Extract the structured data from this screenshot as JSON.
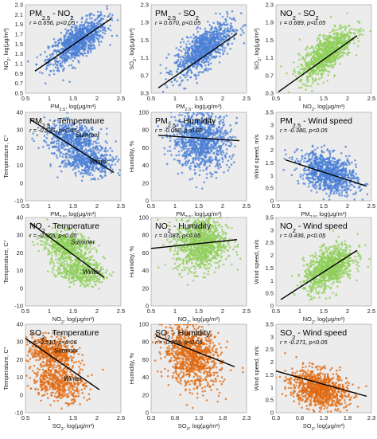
{
  "colors": {
    "pm25": "#4a7fd6",
    "no2": "#8fcf5a",
    "so2": "#e06a12",
    "panel_bg": "#ececec"
  },
  "chart_data": [
    {
      "type": "scatter",
      "title": "PM2.5 - NO2",
      "stat": "r = 0.656, p<0.05",
      "xlabel": "PM2.5, log(μg/m³)",
      "ylabel": "NO2, log(μg/m³)",
      "xlim": [
        0.5,
        2.5
      ],
      "ylim": [
        0.5,
        2.3
      ],
      "xticks": [
        "0.5",
        "1",
        "1.5",
        "2",
        "2.5"
      ],
      "yticks": [
        "0.5",
        "0.7",
        "0.9",
        "1.1",
        "1.3",
        "1.5",
        "1.7",
        "1.9",
        "2.1",
        "2.3"
      ],
      "color": "pm25",
      "cloud": {
        "cx": 1.6,
        "cy": 1.55,
        "sx": 0.3,
        "sy": 0.25,
        "rho": 0.7,
        "n": 900
      },
      "trend": [
        [
          0.7,
          0.95
        ],
        [
          2.3,
          2.02
        ]
      ]
    },
    {
      "type": "scatter",
      "title": "PM2.5 - SO2",
      "stat": "r = 0.670, p<0.05",
      "xlabel": "PM2.5, log(μg/m³)",
      "ylabel": "SO2, log(μg/m³)",
      "xlim": [
        0.5,
        2.5
      ],
      "ylim": [
        0.3,
        2.3
      ],
      "xticks": [
        "0.5",
        "1",
        "1.5",
        "2",
        "2.5"
      ],
      "yticks": [
        "0.3",
        "0.7",
        "1.1",
        "1.5",
        "1.9",
        "2.3"
      ],
      "color": "pm25",
      "cloud": {
        "cx": 1.6,
        "cy": 1.3,
        "sx": 0.3,
        "sy": 0.3,
        "rho": 0.7,
        "n": 900
      },
      "trend": [
        [
          0.65,
          0.42
        ],
        [
          2.3,
          1.65
        ]
      ]
    },
    {
      "type": "scatter",
      "title": "NO2 - SO2",
      "stat": "r = 0.689, p<0.05",
      "xlabel": "NO2, log(μg/m³)",
      "ylabel": "SO2, log(μg/m³)",
      "xlim": [
        0.5,
        2.5
      ],
      "ylim": [
        0.3,
        2.3
      ],
      "xticks": [
        "0.5",
        "1",
        "1.5",
        "2",
        "2.5"
      ],
      "yticks": [
        "0.3",
        "0.7",
        "1.1",
        "1.5",
        "1.9",
        "2.3"
      ],
      "color": "no2",
      "cloud": {
        "cx": 1.55,
        "cy": 1.2,
        "sx": 0.28,
        "sy": 0.3,
        "rho": 0.72,
        "n": 900
      },
      "trend": [
        [
          0.55,
          0.33
        ],
        [
          2.2,
          1.6
        ]
      ]
    },
    {
      "type": "scatter",
      "title": "PM2.5 - Temperature",
      "stat": "r = -0.536, p<0.05",
      "xlabel": "PM2.5, log(μg/m³)",
      "ylabel": "Temperature, C°",
      "xlim": [
        0.5,
        2.5
      ],
      "ylim": [
        -10,
        40
      ],
      "xticks": [
        "0.5",
        "1",
        "1.5",
        "2",
        "2.5"
      ],
      "yticks": [
        "-10",
        "0",
        "10",
        "20",
        "30",
        "40"
      ],
      "color": "pm25",
      "clusters": [
        {
          "cx": 1.5,
          "cy": 25,
          "sx": 0.3,
          "sy": 4.5,
          "rho": -0.3,
          "n": 500
        },
        {
          "cx": 1.8,
          "cy": 12,
          "sx": 0.28,
          "sy": 4,
          "rho": -0.2,
          "n": 450
        }
      ],
      "trend": [
        [
          0.6,
          36
        ],
        [
          2.35,
          6
        ]
      ],
      "annotations": [
        {
          "text": "Summer",
          "x": 1.55,
          "y": 26
        },
        {
          "text": "Winter",
          "x": 1.85,
          "y": 11
        }
      ]
    },
    {
      "type": "scatter",
      "title": "PM2.5 - Humidity",
      "stat": "r = -0.058, p<0.05",
      "xlabel": "PM2.5, log(μg/m³)",
      "ylabel": "Humidity, %",
      "xlim": [
        0.5,
        2.5
      ],
      "ylim": [
        0,
        100
      ],
      "xticks": [
        "0.5",
        "1",
        "1.5",
        "2",
        "2.5"
      ],
      "yticks": [
        "0",
        "20",
        "40",
        "60",
        "80",
        "100"
      ],
      "color": "pm25",
      "cloud": {
        "cx": 1.55,
        "cy": 68,
        "sx": 0.3,
        "sy": 16,
        "rho": -0.05,
        "n": 950,
        "clampY": [
          0,
          100
        ]
      },
      "trend": [
        [
          0.65,
          74
        ],
        [
          2.35,
          68
        ]
      ]
    },
    {
      "type": "scatter",
      "title": "PM2.5 - Wind speed",
      "stat": "r = -0.380, p<0.05",
      "xlabel": "PM2.5, log(μg/m³)",
      "ylabel": "Wind speed, m/s",
      "xlim": [
        0.5,
        2.5
      ],
      "ylim": [
        0,
        3.5
      ],
      "xticks": [
        "0.5",
        "1",
        "1.5",
        "2",
        "2.5"
      ],
      "yticks": [
        "0",
        "0.5",
        "1",
        "1.5",
        "2",
        "2.5",
        "3",
        "3.5"
      ],
      "color": "pm25",
      "cloud": {
        "cx": 1.6,
        "cy": 1.1,
        "sx": 0.3,
        "sy": 0.4,
        "rho": -0.38,
        "n": 900,
        "clampY": [
          0.05,
          3.5
        ]
      },
      "trend": [
        [
          0.7,
          1.62
        ],
        [
          2.4,
          0.58
        ]
      ]
    },
    {
      "type": "scatter",
      "title": "NO2 - Temperature",
      "stat": "r = -0.565, p<0.05",
      "xlabel": "NO2, log(μg/m³)",
      "ylabel": "Temperature, C°",
      "xlim": [
        0.5,
        2.5
      ],
      "ylim": [
        -10,
        40
      ],
      "xticks": [
        "0.5",
        "1",
        "1.5",
        "2",
        "2.5"
      ],
      "yticks": [
        "-10",
        "0",
        "10",
        "20",
        "30",
        "40"
      ],
      "color": "no2",
      "clusters": [
        {
          "cx": 1.35,
          "cy": 24,
          "sx": 0.25,
          "sy": 4.5,
          "rho": -0.3,
          "n": 500
        },
        {
          "cx": 1.65,
          "cy": 10,
          "sx": 0.25,
          "sy": 4,
          "rho": -0.2,
          "n": 450
        }
      ],
      "trend": [
        [
          0.6,
          37
        ],
        [
          2.15,
          6
        ]
      ],
      "annotations": [
        {
          "text": "Summer",
          "x": 1.45,
          "y": 25
        },
        {
          "text": "Winter",
          "x": 1.7,
          "y": 8
        }
      ]
    },
    {
      "type": "scatter",
      "title": "NO2 - Humidity",
      "stat": "r = 0.083, p<0.05",
      "xlabel": "NO2, log(μg/m³)",
      "ylabel": "Humidity, %",
      "xlim": [
        0.5,
        2.5
      ],
      "ylim": [
        0,
        100
      ],
      "xticks": [
        "0.5",
        "1",
        "1.5",
        "2",
        "2.5"
      ],
      "yticks": [
        "0",
        "20",
        "40",
        "60",
        "80",
        "100"
      ],
      "color": "no2",
      "cloud": {
        "cx": 1.55,
        "cy": 70,
        "sx": 0.27,
        "sy": 15,
        "rho": 0.08,
        "n": 950,
        "clampY": [
          0,
          100
        ]
      },
      "trend": [
        [
          0.5,
          65
        ],
        [
          2.3,
          75
        ]
      ]
    },
    {
      "type": "scatter",
      "title": "NO2 - Wind speed",
      "stat": "r = 0.436, p<0.05",
      "xlabel": "NO2, log(μg/m³)",
      "ylabel": "Wind speed, m/s",
      "xlim": [
        0.5,
        2.5
      ],
      "ylim": [
        0,
        3.5
      ],
      "xticks": [
        "0.5",
        "1",
        "1.5",
        "2",
        "2.5"
      ],
      "yticks": [
        "0",
        "0.5",
        "1",
        "1.5",
        "2",
        "2.5",
        "3",
        "3.5"
      ],
      "color": "no2",
      "cloud": {
        "cx": 1.6,
        "cy": 1.5,
        "sx": 0.26,
        "sy": 0.45,
        "rho": 0.5,
        "n": 900,
        "clampY": [
          0.05,
          3.5
        ]
      },
      "trend": [
        [
          0.6,
          0.25
        ],
        [
          2.2,
          2.2
        ]
      ]
    },
    {
      "type": "scatter",
      "title": "SO2 - Temperature",
      "stat": "r = -0.510, p<0.05",
      "xlabel": "SO2, log(μg/m³)",
      "ylabel": "Temperature, C°",
      "xlim": [
        0.5,
        2.5
      ],
      "ylim": [
        -10,
        40
      ],
      "xticks": [
        "0.5",
        "1",
        "1.5",
        "2",
        "2.5"
      ],
      "yticks": [
        "-10",
        "0",
        "10",
        "20",
        "30",
        "40"
      ],
      "color": "so2",
      "clusters": [
        {
          "cx": 1.05,
          "cy": 24,
          "sx": 0.25,
          "sy": 4.5,
          "rho": -0.3,
          "n": 500
        },
        {
          "cx": 1.2,
          "cy": 7,
          "sx": 0.28,
          "sy": 5,
          "rho": -0.2,
          "n": 450
        }
      ],
      "trend": [
        [
          0.5,
          32
        ],
        [
          2.05,
          3
        ]
      ],
      "annotations": [
        {
          "text": "Summer",
          "x": 1.1,
          "y": 24
        },
        {
          "text": "Winter",
          "x": 1.3,
          "y": 8
        }
      ]
    },
    {
      "type": "scatter",
      "title": "SO2 - Humidity",
      "stat": "r = -0.309, p<0.05",
      "xlabel": "SO2, log(μg/m³)",
      "ylabel": "Humidity, %",
      "xlim": [
        0.3,
        2.3
      ],
      "ylim": [
        0,
        100
      ],
      "xticks": [
        "0.3",
        "0.8",
        "1.3",
        "1.8",
        "2.3"
      ],
      "yticks": [
        "0",
        "20",
        "40",
        "60",
        "80",
        "100"
      ],
      "color": "so2",
      "cloud": {
        "cx": 1.15,
        "cy": 64,
        "sx": 0.3,
        "sy": 18,
        "rho": -0.3,
        "n": 950,
        "clampY": [
          0,
          100
        ]
      },
      "trend": [
        [
          0.4,
          87
        ],
        [
          2.05,
          52
        ]
      ]
    },
    {
      "type": "scatter",
      "title": "SO2 - Wind speed",
      "stat": "r = -0.271, p<0.05",
      "xlabel": "SO2, log(μg/m³)",
      "ylabel": "Wind speed, m/s",
      "xlim": [
        0.3,
        2.3
      ],
      "ylim": [
        0,
        3.5
      ],
      "xticks": [
        "0.3",
        "0.8",
        "1.3",
        "1.8",
        "2.3"
      ],
      "yticks": [
        "0",
        "0.5",
        "1",
        "1.5",
        "2",
        "2.5",
        "3",
        "3.5"
      ],
      "color": "so2",
      "cloud": {
        "cx": 1.2,
        "cy": 0.95,
        "sx": 0.3,
        "sy": 0.38,
        "rho": -0.27,
        "n": 900,
        "clampY": [
          0.05,
          3.5
        ]
      },
      "trend": [
        [
          0.3,
          1.65
        ],
        [
          2.2,
          0.65
        ]
      ]
    }
  ]
}
